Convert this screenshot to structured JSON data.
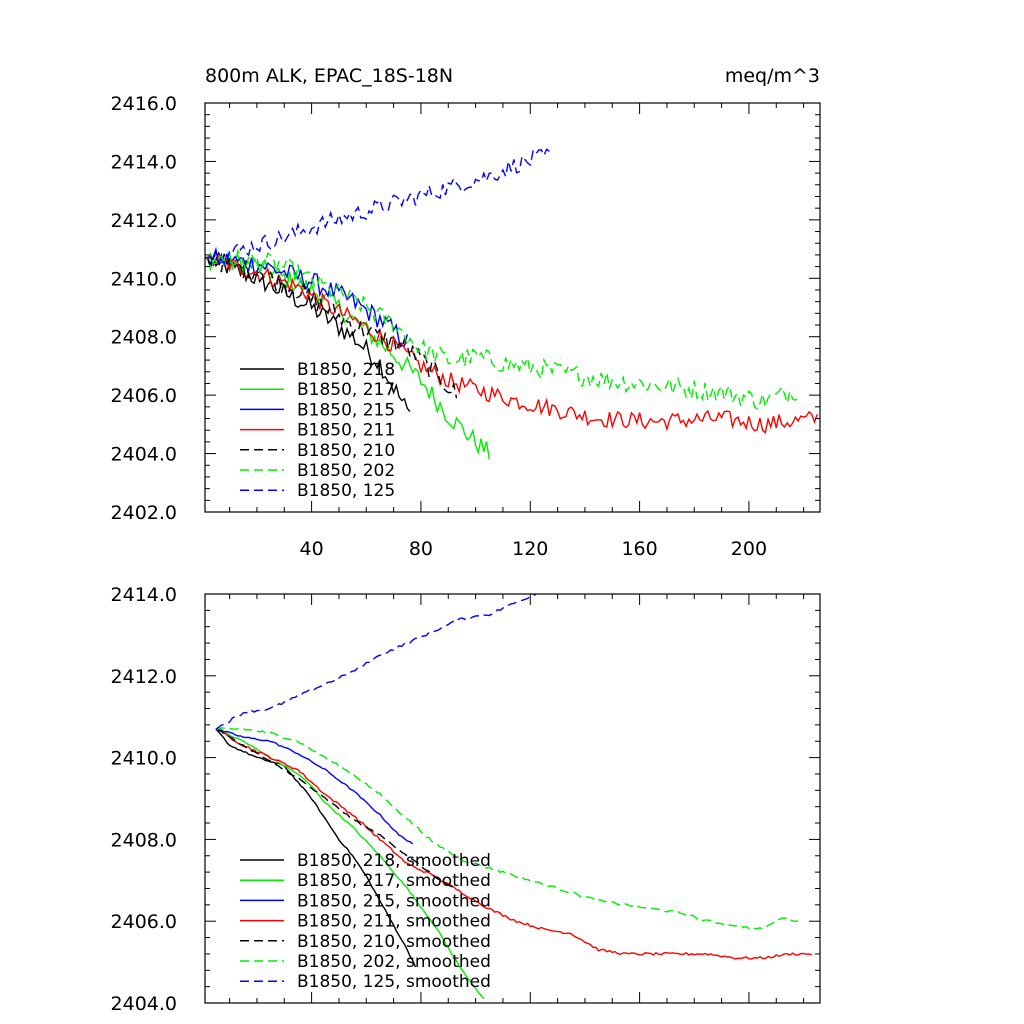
{
  "chart_data": [
    {
      "type": "line",
      "title": "800m ALK, EPAC_18S-18N",
      "units": "meq/m^3",
      "xlim": [
        1,
        226
      ],
      "ylim": [
        2402.0,
        2416.0
      ],
      "x_ticks": [
        40,
        80,
        120,
        160,
        200
      ],
      "x_tick_labels": [
        "40",
        "80",
        "120",
        "160",
        "200"
      ],
      "y_ticks": [
        2402,
        2404,
        2406,
        2408,
        2410,
        2412,
        2414,
        2416
      ],
      "y_tick_labels": [
        "2402.0",
        "2404.0",
        "2406.0",
        "2408.0",
        "2410.0",
        "2412.0",
        "2414.0",
        "2416.0"
      ],
      "series": [
        {
          "name": "B1850, 218",
          "color": "#000000",
          "dash": "solid",
          "noise": 0.35,
          "points": [
            [
              1,
              2410.7
            ],
            [
              20,
              2410.0
            ],
            [
              40,
              2409.0
            ],
            [
              55,
              2408.0
            ],
            [
              65,
              2407.1
            ],
            [
              76,
              2405.3
            ]
          ]
        },
        {
          "name": "B1850, 217",
          "color": "#00ee00",
          "dash": "solid",
          "noise": 0.35,
          "points": [
            [
              1,
              2410.7
            ],
            [
              20,
              2410.4
            ],
            [
              40,
              2409.6
            ],
            [
              50,
              2409.0
            ],
            [
              60,
              2408.2
            ],
            [
              70,
              2407.4
            ],
            [
              80,
              2406.5
            ],
            [
              90,
              2405.3
            ],
            [
              100,
              2404.4
            ],
            [
              105,
              2404.0
            ]
          ]
        },
        {
          "name": "B1850, 215",
          "color": "#0000ff",
          "dash": "solid",
          "noise": 0.35,
          "points": [
            [
              1,
              2410.7
            ],
            [
              20,
              2410.5
            ],
            [
              40,
              2409.9
            ],
            [
              55,
              2409.2
            ],
            [
              65,
              2408.6
            ],
            [
              75,
              2407.8
            ]
          ]
        },
        {
          "name": "B1850, 211",
          "color": "#ff0000",
          "dash": "solid",
          "noise": 0.3,
          "points": [
            [
              1,
              2410.7
            ],
            [
              20,
              2410.2
            ],
            [
              35,
              2409.7
            ],
            [
              45,
              2409.1
            ],
            [
              55,
              2408.6
            ],
            [
              70,
              2407.7
            ],
            [
              80,
              2407.0
            ],
            [
              90,
              2406.5
            ],
            [
              100,
              2406.2
            ],
            [
              115,
              2405.8
            ],
            [
              130,
              2405.5
            ],
            [
              145,
              2405.2
            ],
            [
              165,
              2405.1
            ],
            [
              190,
              2405.2
            ],
            [
              205,
              2405.0
            ],
            [
              225,
              2405.2
            ]
          ]
        },
        {
          "name": "B1850, 210",
          "color": "#000000",
          "dash": "dashed",
          "noise": 0.35,
          "points": [
            [
              1,
              2410.7
            ],
            [
              20,
              2410.2
            ],
            [
              35,
              2409.6
            ],
            [
              45,
              2409.0
            ],
            [
              55,
              2408.4
            ],
            [
              65,
              2408.0
            ],
            [
              75,
              2407.6
            ],
            [
              85,
              2406.8
            ],
            [
              93,
              2406.0
            ]
          ]
        },
        {
          "name": "B1850, 202",
          "color": "#00ee00",
          "dash": "dashed",
          "noise": 0.35,
          "points": [
            [
              1,
              2410.7
            ],
            [
              20,
              2410.6
            ],
            [
              30,
              2410.4
            ],
            [
              40,
              2409.9
            ],
            [
              50,
              2409.5
            ],
            [
              60,
              2409.0
            ],
            [
              70,
              2408.4
            ],
            [
              80,
              2407.6
            ],
            [
              90,
              2407.2
            ],
            [
              100,
              2407.3
            ],
            [
              110,
              2407.1
            ],
            [
              130,
              2406.8
            ],
            [
              150,
              2406.5
            ],
            [
              170,
              2406.3
            ],
            [
              190,
              2406.1
            ],
            [
              205,
              2405.8
            ],
            [
              212,
              2406.0
            ],
            [
              218,
              2406.2
            ]
          ]
        },
        {
          "name": "B1850, 125",
          "color": "#0000ff",
          "dash": "dashed",
          "noise": 0.3,
          "points": [
            [
              1,
              2410.7
            ],
            [
              15,
              2411.0
            ],
            [
              30,
              2411.4
            ],
            [
              45,
              2411.9
            ],
            [
              60,
              2412.3
            ],
            [
              75,
              2412.7
            ],
            [
              90,
              2413.1
            ],
            [
              105,
              2413.5
            ],
            [
              115,
              2413.9
            ],
            [
              127,
              2414.2
            ]
          ]
        }
      ]
    },
    {
      "type": "line",
      "title": "",
      "xlim": [
        1,
        226
      ],
      "ylim": [
        2404.0,
        2414.0
      ],
      "x_ticks": [
        40,
        80,
        120,
        160,
        200
      ],
      "y_ticks": [
        2404,
        2406,
        2408,
        2410,
        2412,
        2414
      ],
      "y_tick_labels": [
        "2404.0",
        "2406.0",
        "2408.0",
        "2410.0",
        "2412.0",
        "2414.0"
      ],
      "series": [
        {
          "name": "B1850, 218, smoothed",
          "color": "#000000",
          "dash": "solid",
          "noise": 0.02,
          "points": [
            [
              5,
              2410.7
            ],
            [
              10,
              2410.3
            ],
            [
              20,
              2410.0
            ],
            [
              30,
              2409.8
            ],
            [
              35,
              2409.4
            ],
            [
              40,
              2409.0
            ],
            [
              45,
              2408.5
            ],
            [
              50,
              2408.0
            ],
            [
              55,
              2407.6
            ],
            [
              60,
              2407.1
            ],
            [
              65,
              2406.5
            ],
            [
              70,
              2405.9
            ],
            [
              75,
              2405.3
            ],
            [
              78,
              2404.9
            ]
          ]
        },
        {
          "name": "B1850, 217, smoothed",
          "color": "#00ee00",
          "dash": "solid",
          "noise": 0.02,
          "points": [
            [
              5,
              2410.7
            ],
            [
              15,
              2410.4
            ],
            [
              25,
              2410.0
            ],
            [
              35,
              2409.6
            ],
            [
              40,
              2409.3
            ],
            [
              45,
              2408.9
            ],
            [
              55,
              2408.3
            ],
            [
              65,
              2407.6
            ],
            [
              75,
              2406.8
            ],
            [
              85,
              2405.9
            ],
            [
              95,
              2404.8
            ],
            [
              103,
              2404.1
            ]
          ]
        },
        {
          "name": "B1850, 215, smoothed",
          "color": "#0000ff",
          "dash": "solid",
          "noise": 0.02,
          "points": [
            [
              5,
              2410.7
            ],
            [
              15,
              2410.5
            ],
            [
              25,
              2410.4
            ],
            [
              35,
              2410.1
            ],
            [
              45,
              2409.7
            ],
            [
              55,
              2409.2
            ],
            [
              65,
              2408.6
            ],
            [
              72,
              2408.1
            ],
            [
              77,
              2407.9
            ]
          ]
        },
        {
          "name": "B1850, 211, smoothed",
          "color": "#ff0000",
          "dash": "solid",
          "noise": 0.03,
          "points": [
            [
              5,
              2410.7
            ],
            [
              15,
              2410.3
            ],
            [
              25,
              2410.0
            ],
            [
              35,
              2409.7
            ],
            [
              45,
              2409.1
            ],
            [
              55,
              2408.6
            ],
            [
              65,
              2408.0
            ],
            [
              75,
              2407.4
            ],
            [
              85,
              2407.1
            ],
            [
              95,
              2406.7
            ],
            [
              105,
              2406.3
            ],
            [
              115,
              2406.0
            ],
            [
              125,
              2405.8
            ],
            [
              135,
              2405.7
            ],
            [
              145,
              2405.3
            ],
            [
              155,
              2405.2
            ],
            [
              165,
              2405.2
            ],
            [
              175,
              2405.2
            ],
            [
              185,
              2405.2
            ],
            [
              195,
              2405.1
            ],
            [
              205,
              2405.1
            ],
            [
              215,
              2405.2
            ],
            [
              223,
              2405.2
            ]
          ]
        },
        {
          "name": "B1850, 210, smoothed",
          "color": "#000000",
          "dash": "dashed",
          "noise": 0.02,
          "points": [
            [
              5,
              2410.7
            ],
            [
              15,
              2410.3
            ],
            [
              25,
              2409.9
            ],
            [
              35,
              2409.5
            ],
            [
              45,
              2409.0
            ],
            [
              55,
              2408.5
            ],
            [
              65,
              2408.1
            ],
            [
              75,
              2407.6
            ],
            [
              85,
              2407.1
            ],
            [
              92,
              2406.8
            ]
          ]
        },
        {
          "name": "B1850, 202, smoothed",
          "color": "#00ee00",
          "dash": "dashed",
          "noise": 0.03,
          "points": [
            [
              5,
              2410.7
            ],
            [
              15,
              2410.7
            ],
            [
              25,
              2410.6
            ],
            [
              35,
              2410.4
            ],
            [
              45,
              2410.0
            ],
            [
              55,
              2409.6
            ],
            [
              65,
              2409.1
            ],
            [
              75,
              2408.5
            ],
            [
              85,
              2407.9
            ],
            [
              95,
              2407.5
            ],
            [
              105,
              2407.3
            ],
            [
              115,
              2407.1
            ],
            [
              125,
              2406.9
            ],
            [
              135,
              2406.7
            ],
            [
              145,
              2406.5
            ],
            [
              155,
              2406.4
            ],
            [
              165,
              2406.3
            ],
            [
              175,
              2406.2
            ],
            [
              185,
              2406.0
            ],
            [
              195,
              2405.9
            ],
            [
              205,
              2405.8
            ],
            [
              212,
              2406.1
            ],
            [
              218,
              2406.0
            ]
          ]
        },
        {
          "name": "B1850, 125, smoothed",
          "color": "#0000ff",
          "dash": "dashed",
          "noise": 0.03,
          "points": [
            [
              5,
              2410.7
            ],
            [
              15,
              2411.1
            ],
            [
              25,
              2411.2
            ],
            [
              35,
              2411.5
            ],
            [
              45,
              2411.8
            ],
            [
              55,
              2412.1
            ],
            [
              65,
              2412.5
            ],
            [
              75,
              2412.8
            ],
            [
              85,
              2413.1
            ],
            [
              95,
              2413.4
            ],
            [
              105,
              2413.5
            ],
            [
              115,
              2413.8
            ],
            [
              122,
              2414.0
            ]
          ]
        }
      ]
    }
  ]
}
